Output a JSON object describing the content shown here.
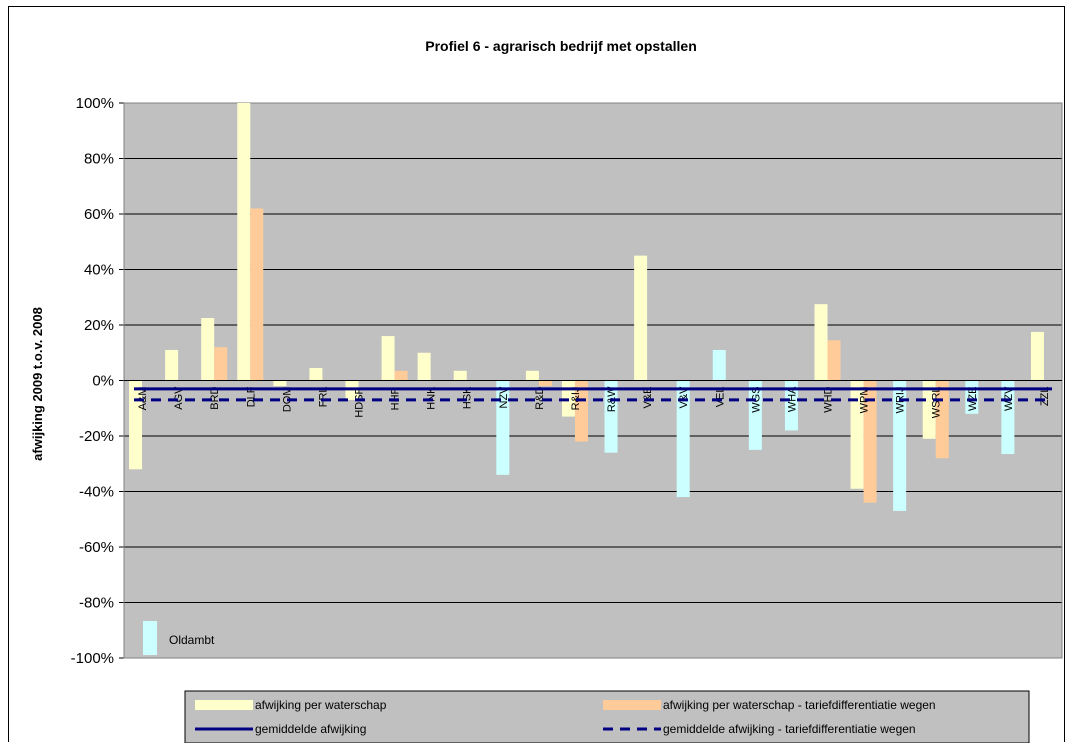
{
  "chart_data": {
    "type": "bar",
    "title": "Profiel 6 - agrarisch bedrijf met opstallen",
    "ylabel": "afwijking 2009 t.o.v. 2008",
    "xlabel": "",
    "ylim": [
      -100,
      100
    ],
    "yticks": [
      "100%",
      "80%",
      "60%",
      "40%",
      "20%",
      "0%",
      "-20%",
      "-40%",
      "-60%",
      "-80%",
      "-100%"
    ],
    "grid": true,
    "legend_position": "bottom",
    "categories": [
      "A&M",
      "AGV",
      "BRD",
      "DLF",
      "DOM",
      "FRL",
      "HDSR",
      "HHR",
      "HNK",
      "HSK",
      "NZV",
      "R&D",
      "R&IJ",
      "R&W",
      "V&E",
      "V&V",
      "VEL",
      "WGS",
      "WHA",
      "WHD",
      "WPM",
      "WRIJ",
      "WSRL",
      "WZE",
      "WZV",
      "ZZL"
    ],
    "series": [
      {
        "name": "afwijking per waterschap",
        "color": "#FFFFCC",
        "values": [
          -32,
          11,
          22.5,
          100,
          -2,
          4.5,
          -7,
          16,
          10,
          3.5,
          0,
          3.5,
          -13,
          0,
          45,
          0,
          0,
          0,
          0,
          27.5,
          -39,
          0,
          -21,
          0,
          0,
          17.5
        ]
      },
      {
        "name": "afwijking per waterschap - tariefdifferentiatie wegen",
        "color": "#FFCC99",
        "values": [
          0,
          0,
          12,
          62,
          0,
          0,
          0,
          3.5,
          0,
          0,
          0,
          -2,
          -22,
          0,
          0,
          0,
          0,
          0,
          0,
          14.5,
          -44,
          0,
          -28,
          0,
          0,
          0
        ]
      },
      {
        "name": "Oldambt",
        "color": "#CCFFFF",
        "values": [
          0,
          0,
          0,
          0,
          0,
          0,
          0,
          0,
          0,
          0,
          -34,
          0,
          0,
          -26,
          0,
          -42,
          11,
          -25,
          -18,
          0,
          0,
          -47,
          0,
          -12,
          -26.5,
          0
        ]
      }
    ],
    "lines": [
      {
        "name": "gemiddelde afwijking",
        "value": -3,
        "color": "#000080",
        "style": "solid"
      },
      {
        "name": "gemiddelde afwijking - tariefdifferentiatie wegen",
        "value": -7,
        "color": "#000080",
        "style": "dashed"
      }
    ],
    "annotation": "Oldambt",
    "legend": [
      "afwijking per waterschap",
      "afwijking per waterschap - tariefdifferentiatie wegen",
      "gemiddelde afwijking",
      "gemiddelde afwijking - tariefdifferentiatie wegen"
    ],
    "colors": {
      "plot_bg": "#C0C0C0",
      "gridline": "#000000",
      "legend_bg": "#C0C0C0"
    }
  }
}
